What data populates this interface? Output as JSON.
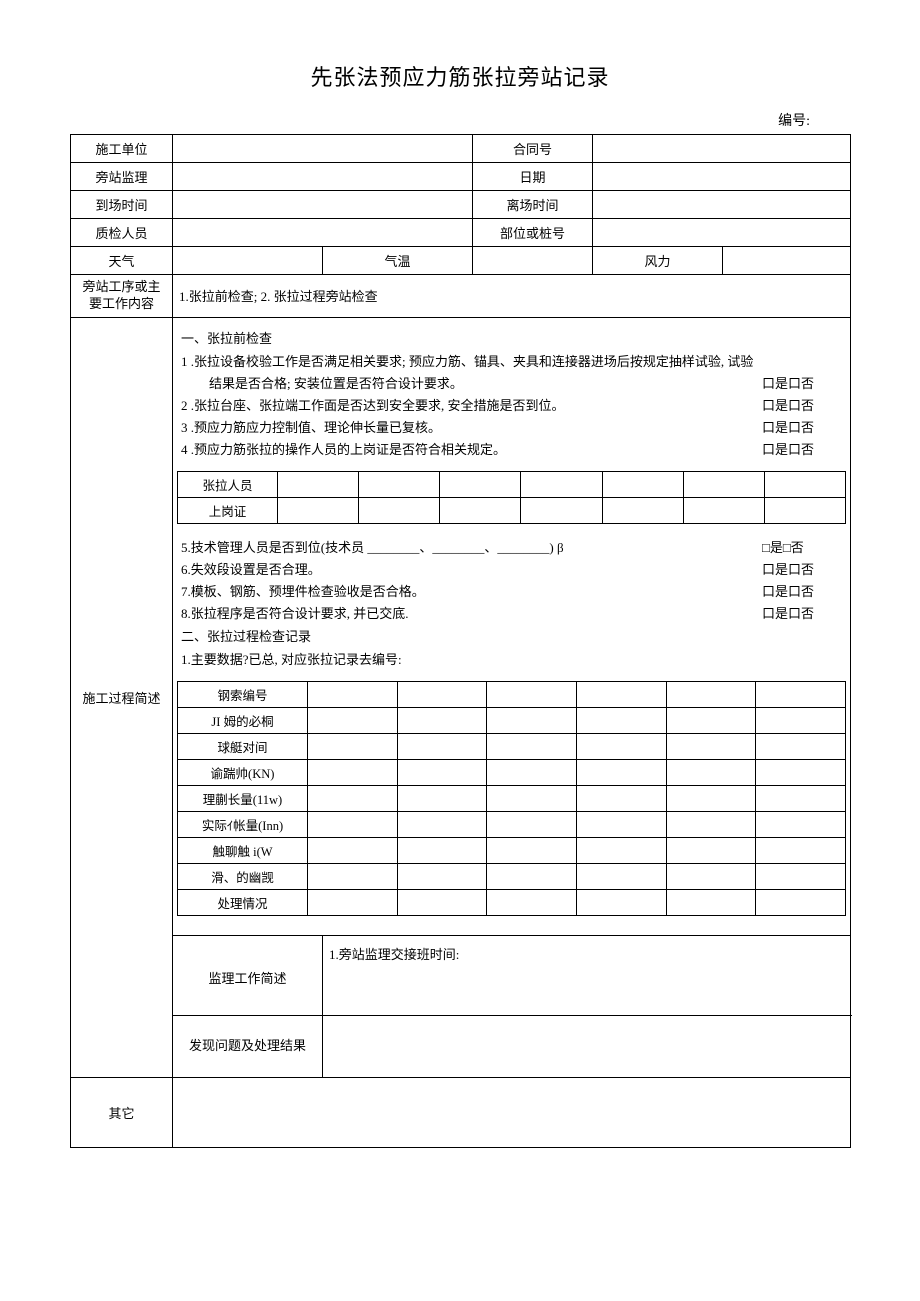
{
  "title": "先张法预应力筋张拉旁站记录",
  "doc_number_label": "编号:",
  "header": {
    "unit_label": "施工单位",
    "unit_value": "",
    "contract_label": "合同号",
    "contract_value": "",
    "supervisor_label": "旁站监理",
    "supervisor_value": "",
    "date_label": "日期",
    "date_value": "",
    "arrive_label": "到场时间",
    "arrive_value": "",
    "leave_label": "离场时间",
    "leave_value": "",
    "qc_label": "质检人员",
    "qc_value": "",
    "part_label": "部位或桩号",
    "part_value": "",
    "weather_label": "天气",
    "weather_value": "",
    "temp_label": "气温",
    "temp_value": "",
    "wind_label": "风力",
    "wind_value": ""
  },
  "proc_label": "旁站工序或主要工作内容",
  "proc_value": "1.张拉前检查; 2. 张拉过程旁站检查",
  "construction_label": "施工过程简述",
  "section1": {
    "heading": "一、张拉前检查",
    "item1a": "1 .张拉设备校验工作是否满足相关要求; 预应力筋、锚具、夹具和连接器进场后按规定抽样试验, 试验",
    "item1b": "结果是否合格; 安装位置是否符合设计要求。",
    "item2": "2 .张拉台座、张拉端工作面是否达到安全要求, 安全措施是否到位。",
    "item3": "3 .预应力筋应力控制值、理论伸长量已复核。",
    "item4": "4 .预应力筋张拉的操作人员的上岗证是否符合相关规定。",
    "check": "口是口否",
    "personnel_row_label": "张拉人员",
    "cert_row_label": "上岗证",
    "item5_pre": "5.技术管理人员是否到位(技术员 ",
    "item5_blank": "________",
    "item5_sep": "、",
    "item5_suf": ") β",
    "item5_check": "□是□否",
    "item6": "6.失效段设置是否合理。",
    "item7": "7.模板、钢筋、预埋件检查验收是否合格。",
    "item8": "8.张拉程序是否符合设计要求, 并已交底."
  },
  "section2": {
    "heading": "二、张拉过程检查记录",
    "sub1": "1.主要数据?已总, 对应张拉记录去编号:",
    "rows": [
      "钢索编号",
      "JI 姆的必桐",
      "球艇对间",
      "谕踹帅(KN)",
      "理蒯长量(11w)",
      "实际ｲ帐量(Inn)",
      "触聊触 i(W",
      "滑、的幽觊",
      "处理情况"
    ]
  },
  "supervision_label": "监理工作简述",
  "supervision_value": "1.旁站监理交接班时间:",
  "issues_label": "发现问题及处理结果",
  "issues_value": "",
  "other_label": "其它",
  "other_value": ""
}
